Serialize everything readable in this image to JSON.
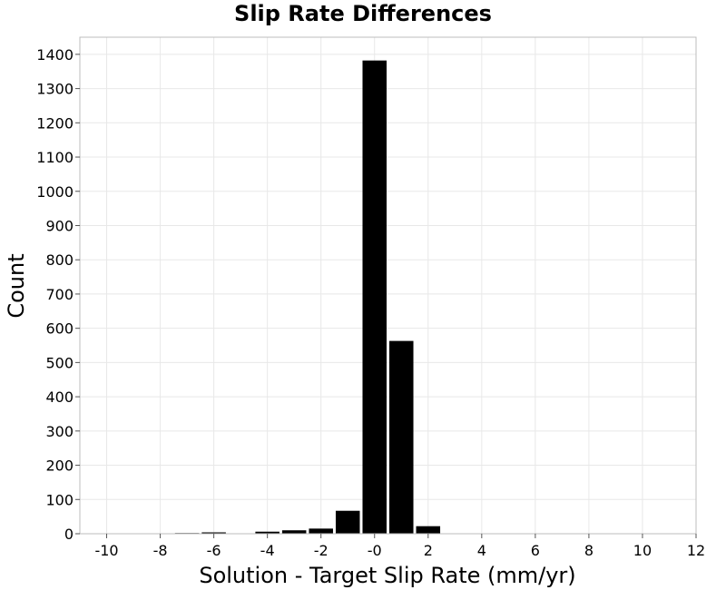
{
  "chart_data": {
    "type": "bar",
    "title": "Slip Rate Differences",
    "xlabel": "Solution - Target Slip Rate (mm/yr)",
    "ylabel": "Count",
    "xlim": [
      -11,
      12
    ],
    "ylim": [
      0,
      1450
    ],
    "x_ticks": [
      -10,
      -8,
      -6,
      -4,
      -2,
      0,
      2,
      4,
      6,
      8,
      10,
      12
    ],
    "x_tick_labels": [
      "-10",
      "-8",
      "-6",
      "-4",
      "-2",
      "-0",
      "2",
      "4",
      "6",
      "8",
      "10",
      "12"
    ],
    "y_ticks": [
      0,
      100,
      200,
      300,
      400,
      500,
      600,
      700,
      800,
      900,
      1000,
      1100,
      1200,
      1300,
      1400
    ],
    "bin_width": 1,
    "bin_centers": [
      -10,
      -9,
      -8,
      -7,
      -6,
      -5,
      -4,
      -3,
      -2,
      -1,
      0,
      1,
      2,
      3,
      4,
      5,
      6,
      7,
      8,
      9,
      10,
      11
    ],
    "values": [
      0,
      0,
      0,
      2,
      4,
      0,
      6,
      10,
      15,
      67,
      1382,
      563,
      22,
      0,
      0,
      0,
      0,
      0,
      0,
      0,
      0,
      0
    ],
    "bar_color": "#000000",
    "grid": true
  }
}
